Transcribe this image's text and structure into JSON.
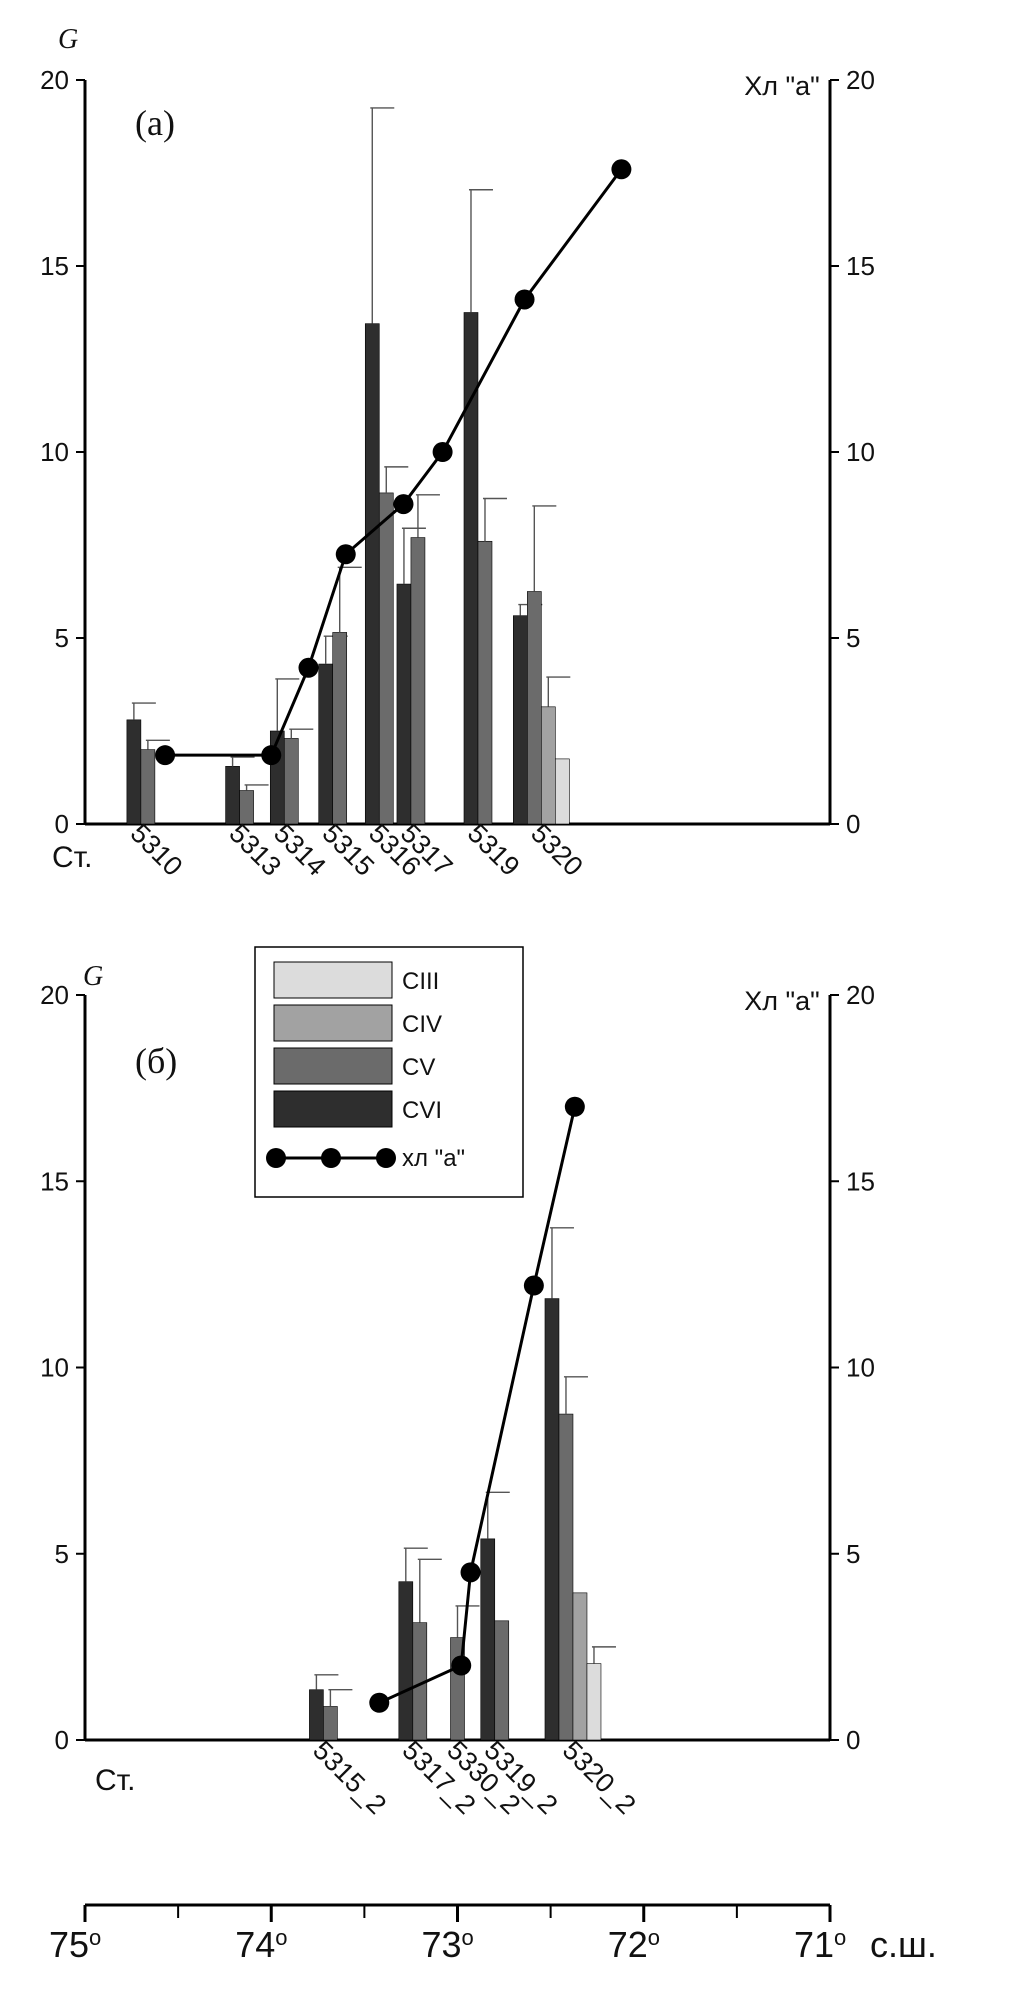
{
  "colors": {
    "CIII": "#dcdcdc",
    "CIV": "#a2a2a2",
    "CV": "#6b6b6b",
    "CVI": "#2e2e2e",
    "line": "#000000"
  },
  "chart_data": [
    {
      "panel_label": "(а)",
      "type": "bar",
      "ylabel": "G",
      "y2label": "Хл \"а\"",
      "ylim": [
        0,
        20
      ],
      "y2lim": [
        0,
        20
      ],
      "yticks": [
        "0",
        "5",
        "10",
        "15",
        "20"
      ],
      "station_prefix": "Ст.",
      "stations": [
        "5310",
        "5313",
        "5314",
        "5315",
        "5316",
        "5317",
        "5319",
        "5320"
      ],
      "station_latitudes": [
        74.7,
        74.17,
        73.93,
        73.67,
        73.42,
        73.25,
        72.89,
        72.55
      ],
      "bars": [
        {
          "station": "5310",
          "stage": "CVI",
          "value": 2.8,
          "error": 3.25
        },
        {
          "station": "5310",
          "stage": "CV",
          "value": 2.0,
          "error": 2.25
        },
        {
          "station": "5313",
          "stage": "CVI",
          "value": 1.55,
          "error": 1.8
        },
        {
          "station": "5313",
          "stage": "CV",
          "value": 0.9,
          "error": 1.05
        },
        {
          "station": "5314",
          "stage": "CVI",
          "value": 2.5,
          "error": 3.9
        },
        {
          "station": "5314",
          "stage": "CV",
          "value": 2.3,
          "error": 2.55
        },
        {
          "station": "5315",
          "stage": "CVI",
          "value": 4.3,
          "error": 5.05
        },
        {
          "station": "5315",
          "stage": "CV",
          "value": 5.15,
          "error": 6.9
        },
        {
          "station": "5316",
          "stage": "CVI",
          "value": 13.45,
          "error": 19.25
        },
        {
          "station": "5316",
          "stage": "CV",
          "value": 8.9,
          "error": 9.6
        },
        {
          "station": "5317",
          "stage": "CVI",
          "value": 6.45,
          "error": 7.95
        },
        {
          "station": "5317",
          "stage": "CV",
          "value": 7.7,
          "error": 8.85
        },
        {
          "station": "5319",
          "stage": "CVI",
          "value": 13.75,
          "error": 17.05
        },
        {
          "station": "5319",
          "stage": "CV",
          "value": 7.6,
          "error": 8.75
        },
        {
          "station": "5320",
          "stage": "CVI",
          "value": 5.6,
          "error": 5.9
        },
        {
          "station": "5320",
          "stage": "CV",
          "value": 6.25,
          "error": 8.55
        },
        {
          "station": "5320",
          "stage": "CIV",
          "value": 3.15,
          "error": 3.95
        },
        {
          "station": "5320",
          "stage": "CIII",
          "value": 1.75,
          "error": null
        }
      ],
      "line_series": {
        "name": "хл \"а\"",
        "points": [
          {
            "lat": 74.57,
            "value": 1.85
          },
          {
            "lat": 74.0,
            "value": 1.85
          },
          {
            "lat": 73.8,
            "value": 4.2
          },
          {
            "lat": 73.6,
            "value": 7.25
          },
          {
            "lat": 73.29,
            "value": 8.6
          },
          {
            "lat": 73.08,
            "value": 10.0
          },
          {
            "lat": 72.64,
            "value": 14.1
          },
          {
            "lat": 72.12,
            "value": 17.6
          }
        ]
      }
    },
    {
      "panel_label": "(б)",
      "type": "bar",
      "ylabel": "G",
      "y2label": "Хл \"а\"",
      "ylim": [
        0,
        20
      ],
      "y2lim": [
        0,
        20
      ],
      "yticks": [
        "0",
        "5",
        "10",
        "15",
        "20"
      ],
      "station_prefix": "Ст.",
      "stations": [
        "5315_2",
        "5317_2",
        "5330_2",
        "5319_2",
        "5320_2"
      ],
      "station_latitudes": [
        73.72,
        73.24,
        73.0,
        72.8,
        72.38
      ],
      "bars": [
        {
          "station": "5315_2",
          "stage": "CVI",
          "value": 1.35,
          "error": 1.75
        },
        {
          "station": "5315_2",
          "stage": "CV",
          "value": 0.9,
          "error": 1.35
        },
        {
          "station": "5317_2",
          "stage": "CVI",
          "value": 4.25,
          "error": 5.15
        },
        {
          "station": "5317_2",
          "stage": "CV",
          "value": 3.15,
          "error": 4.85
        },
        {
          "station": "5330_2",
          "stage": "CV",
          "value": 2.75,
          "error": 3.6
        },
        {
          "station": "5319_2",
          "stage": "CVI",
          "value": 5.4,
          "error": 6.65
        },
        {
          "station": "5319_2",
          "stage": "CV",
          "value": 3.2,
          "error": null
        },
        {
          "station": "5320_2",
          "stage": "CVI",
          "value": 11.85,
          "error": 13.75
        },
        {
          "station": "5320_2",
          "stage": "CV",
          "value": 8.75,
          "error": 9.75
        },
        {
          "station": "5320_2",
          "stage": "CIV",
          "value": 3.95,
          "error": null
        },
        {
          "station": "5320_2",
          "stage": "CIII",
          "value": 2.05,
          "error": 2.5
        }
      ],
      "line_series": {
        "name": "хл \"а\"",
        "points": [
          {
            "lat": 73.42,
            "value": 1.0
          },
          {
            "lat": 72.98,
            "value": 2.0
          },
          {
            "lat": 72.93,
            "value": 4.5
          },
          {
            "lat": 72.59,
            "value": 12.2
          },
          {
            "lat": 72.37,
            "value": 17.0
          }
        ]
      }
    }
  ],
  "legend": {
    "items": [
      {
        "label": "CIII",
        "stage": "CIII"
      },
      {
        "label": "CIV",
        "stage": "CIV"
      },
      {
        "label": "CV",
        "stage": "CV"
      },
      {
        "label": "CVI",
        "stage": "CVI"
      },
      {
        "label": "хл \"а\"",
        "stage": "line"
      }
    ]
  },
  "latitude_axis": {
    "ticks": [
      {
        "value": 75,
        "label": "75",
        "sup": "о"
      },
      {
        "value": 74,
        "label": "74",
        "sup": "о"
      },
      {
        "value": 73,
        "label": "73",
        "sup": "о"
      },
      {
        "value": 72,
        "label": "72",
        "sup": "о"
      },
      {
        "value": 71,
        "label": "71",
        "sup": "о"
      }
    ],
    "minor_ticks": [
      74.5,
      73.5,
      72.5,
      71.5
    ],
    "unit_label": "с.ш."
  }
}
